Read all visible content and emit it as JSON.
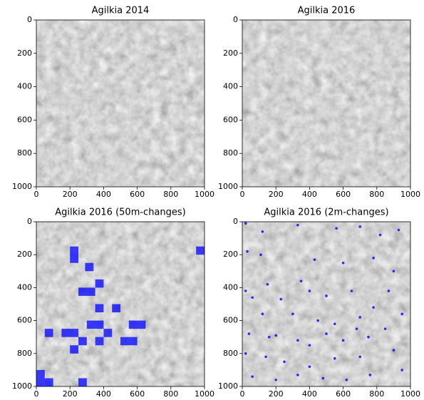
{
  "chart_data": [
    {
      "type": "image",
      "title": "Agilkia 2014",
      "xlim": [
        0,
        1000
      ],
      "ylim": [
        1000,
        0
      ],
      "xticks": [
        0,
        200,
        400,
        600,
        800,
        1000
      ],
      "yticks": [
        0,
        200,
        400,
        600,
        800,
        1000
      ]
    },
    {
      "type": "image",
      "title": "Agilkia 2016",
      "xlim": [
        0,
        1000
      ],
      "ylim": [
        1000,
        0
      ],
      "xticks": [
        0,
        200,
        400,
        600,
        800,
        1000
      ],
      "yticks": [
        0,
        200,
        400,
        600,
        800,
        1000
      ]
    },
    {
      "type": "image",
      "title": "Agilkia 2016 (50m-changes)",
      "xlim": [
        0,
        1000
      ],
      "ylim": [
        1000,
        0
      ],
      "xticks": [
        0,
        200,
        400,
        600,
        800,
        1000
      ],
      "yticks": [
        0,
        200,
        400,
        600,
        800,
        1000
      ],
      "color": "#0000ff",
      "regions": [
        [
          200,
          150,
          50,
          100
        ],
        [
          290,
          250,
          50,
          50
        ],
        [
          250,
          400,
          100,
          50
        ],
        [
          350,
          350,
          50,
          50
        ],
        [
          350,
          500,
          50,
          50
        ],
        [
          450,
          500,
          50,
          50
        ],
        [
          300,
          600,
          100,
          50
        ],
        [
          550,
          600,
          100,
          50
        ],
        [
          50,
          650,
          50,
          50
        ],
        [
          150,
          650,
          100,
          50
        ],
        [
          400,
          650,
          50,
          50
        ],
        [
          250,
          700,
          50,
          50
        ],
        [
          350,
          700,
          50,
          50
        ],
        [
          500,
          700,
          100,
          50
        ],
        [
          200,
          750,
          50,
          50
        ],
        [
          0,
          900,
          50,
          100
        ],
        [
          50,
          950,
          50,
          50
        ],
        [
          250,
          950,
          50,
          50
        ],
        [
          950,
          150,
          50,
          50
        ]
      ]
    },
    {
      "type": "image",
      "title": "Agilkia 2016 (2m-changes)",
      "xlim": [
        0,
        1000
      ],
      "ylim": [
        1000,
        0
      ],
      "xticks": [
        0,
        200,
        400,
        600,
        800,
        1000
      ],
      "yticks": [
        0,
        200,
        400,
        600,
        800,
        1000
      ],
      "color": "#0000ff",
      "points": [
        [
          20,
          10
        ],
        [
          120,
          60
        ],
        [
          330,
          20
        ],
        [
          560,
          40
        ],
        [
          700,
          30
        ],
        [
          820,
          80
        ],
        [
          930,
          50
        ],
        [
          30,
          180
        ],
        [
          110,
          200
        ],
        [
          430,
          230
        ],
        [
          600,
          250
        ],
        [
          780,
          220
        ],
        [
          900,
          300
        ],
        [
          20,
          420
        ],
        [
          60,
          460
        ],
        [
          150,
          380
        ],
        [
          350,
          360
        ],
        [
          400,
          420
        ],
        [
          230,
          470
        ],
        [
          500,
          450
        ],
        [
          650,
          420
        ],
        [
          870,
          420
        ],
        [
          120,
          560
        ],
        [
          300,
          560
        ],
        [
          450,
          600
        ],
        [
          550,
          620
        ],
        [
          700,
          580
        ],
        [
          780,
          520
        ],
        [
          950,
          560
        ],
        [
          40,
          680
        ],
        [
          160,
          700
        ],
        [
          200,
          690
        ],
        [
          330,
          720
        ],
        [
          400,
          750
        ],
        [
          500,
          680
        ],
        [
          600,
          720
        ],
        [
          680,
          650
        ],
        [
          750,
          700
        ],
        [
          850,
          650
        ],
        [
          20,
          800
        ],
        [
          140,
          820
        ],
        [
          250,
          850
        ],
        [
          400,
          880
        ],
        [
          550,
          830
        ],
        [
          700,
          820
        ],
        [
          900,
          780
        ],
        [
          60,
          940
        ],
        [
          200,
          960
        ],
        [
          330,
          930
        ],
        [
          480,
          950
        ],
        [
          620,
          960
        ],
        [
          760,
          930
        ],
        [
          950,
          900
        ]
      ]
    }
  ]
}
